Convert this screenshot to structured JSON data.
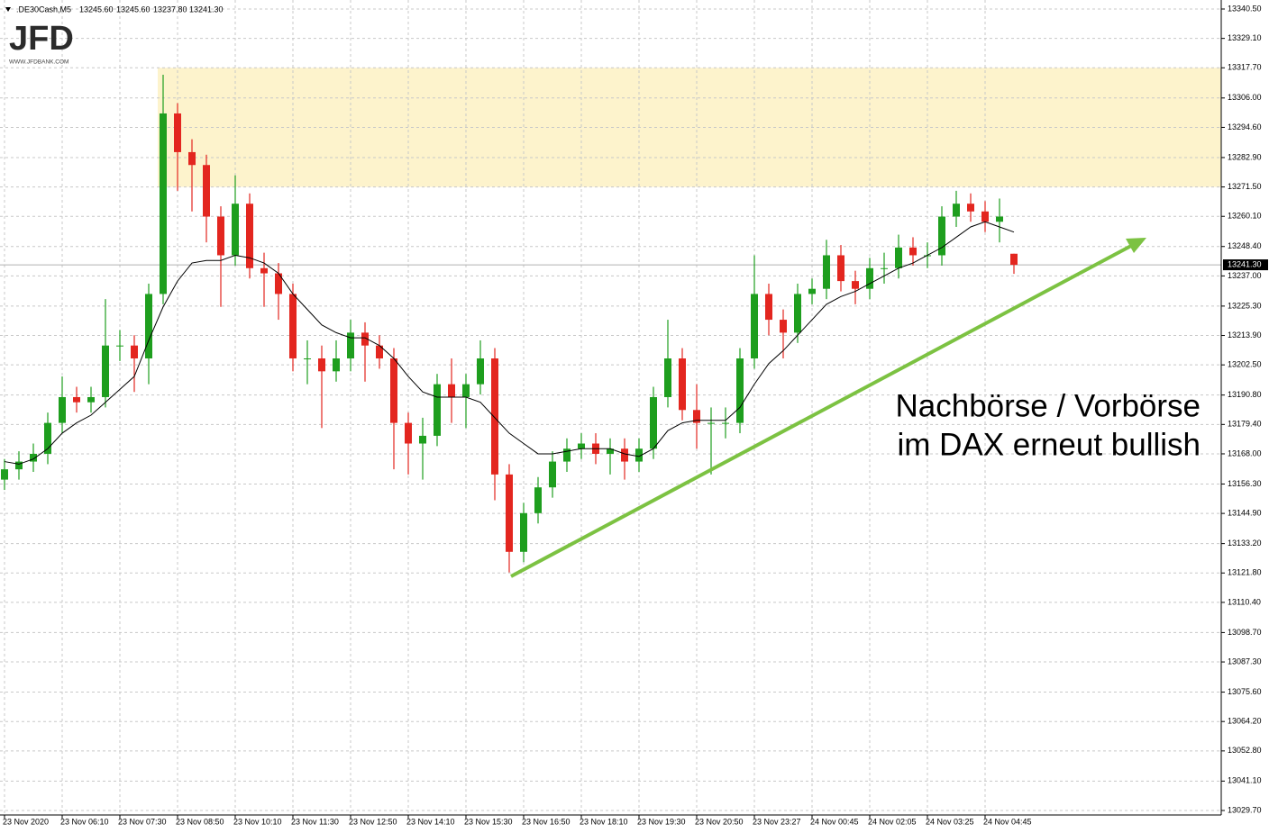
{
  "chart_data": {
    "type": "candlestick",
    "symbol": ".DE30Cash,M5",
    "header_values": [
      "13245.60",
      "13245.60",
      "13237.80",
      "13241.30"
    ],
    "logo": "JFD",
    "logo_url": "WWW.JFDBANK.COM",
    "annotation": [
      "Nachbörse / Vorbörse",
      "im DAX erneut bullish"
    ],
    "ylim": [
      13029.7,
      13340.5
    ],
    "yticks": [
      {
        "value": 13340.5,
        "label": "13340.50"
      },
      {
        "value": 13329.1,
        "label": "13329.10"
      },
      {
        "value": 13317.7,
        "label": "13317.70"
      },
      {
        "value": 13306,
        "label": "13306.00"
      },
      {
        "value": 13294.6,
        "label": "13294.60"
      },
      {
        "value": 13282.9,
        "label": "13282.90"
      },
      {
        "value": 13271.5,
        "label": "13271.50"
      },
      {
        "value": 13260.1,
        "label": "13260.10"
      },
      {
        "value": 13248.4,
        "label": "13248.40"
      },
      {
        "value": 13237,
        "label": "13237.00"
      },
      {
        "value": 13225.3,
        "label": "13225.30"
      },
      {
        "value": 13213.9,
        "label": "13213.90"
      },
      {
        "value": 13202.5,
        "label": "13202.50"
      },
      {
        "value": 13190.8,
        "label": "13190.80"
      },
      {
        "value": 13179.4,
        "label": "13179.40"
      },
      {
        "value": 13168,
        "label": "13168.00"
      },
      {
        "value": 13156.3,
        "label": "13156.30"
      },
      {
        "value": 13144.9,
        "label": "13144.90"
      },
      {
        "value": 13133.2,
        "label": "13133.20"
      },
      {
        "value": 13121.8,
        "label": "13121.80"
      },
      {
        "value": 13110.4,
        "label": "13110.40"
      },
      {
        "value": 13098.7,
        "label": "13098.70"
      },
      {
        "value": 13087.3,
        "label": "13087.30"
      },
      {
        "value": 13075.6,
        "label": "13075.60"
      },
      {
        "value": 13064.2,
        "label": "13064.20"
      },
      {
        "value": 13052.8,
        "label": "13052.80"
      },
      {
        "value": 13041.1,
        "label": "13041.10"
      },
      {
        "value": 13029.7,
        "label": "13029.70"
      }
    ],
    "x_labels": [
      "23 Nov 2020",
      "23 Nov 06:10",
      "23 Nov 07:30",
      "23 Nov 08:50",
      "23 Nov 10:10",
      "23 Nov 11:30",
      "23 Nov 12:50",
      "23 Nov 14:10",
      "23 Nov 15:30",
      "23 Nov 16:50",
      "23 Nov 18:10",
      "23 Nov 19:30",
      "23 Nov 20:50",
      "23 Nov 23:27",
      "24 Nov 00:45",
      "24 Nov 02:05",
      "24 Nov 03:25",
      "24 Nov 04:45"
    ],
    "grid": true,
    "up_color": "#1e9e1e",
    "down_color": "#e3261f",
    "open": [
      13158,
      13162,
      13165,
      13168,
      13180,
      13190,
      13188,
      13190,
      13210,
      13210,
      13205,
      13230,
      13300,
      13285,
      13280,
      13260,
      13245,
      13265,
      13240,
      13238,
      13230,
      13205,
      13205,
      13200,
      13205,
      13215,
      13210,
      13205,
      13180,
      13172,
      13175,
      13195,
      13190,
      13195,
      13205,
      13160,
      13130,
      13145,
      13155,
      13165,
      13170,
      13172,
      13168,
      13170,
      13165,
      13170,
      13190,
      13205,
      13185,
      13180,
      13180,
      13180,
      13205,
      13230,
      13220,
      13215,
      13230,
      13232,
      13245,
      13235,
      13232,
      13240,
      13240,
      13248,
      13245,
      13245,
      13260,
      13265,
      13262,
      13258,
      13245.6
    ],
    "high": [
      13166,
      13169,
      13172,
      13184,
      13198,
      13194,
      13194,
      13228,
      13216,
      13214,
      13234,
      13315,
      13304,
      13290,
      13284,
      13264,
      13276,
      13269,
      13246,
      13242,
      13234,
      13212,
      13210,
      13212,
      13220,
      13219,
      13214,
      13209,
      13184,
      13182,
      13199,
      13205,
      13199,
      13212,
      13209,
      13164,
      13149,
      13159,
      13169,
      13174,
      13176,
      13176,
      13174,
      13174,
      13174,
      13194,
      13220,
      13209,
      13195,
      13186,
      13186,
      13209,
      13245,
      13234,
      13224,
      13234,
      13236,
      13251,
      13249,
      13239,
      13244,
      13246,
      13253,
      13252,
      13250,
      13264,
      13270,
      13269,
      13266,
      13267,
      13245.6
    ],
    "low": [
      13154,
      13158,
      13161,
      13164,
      13176,
      13184,
      13184,
      13186,
      13204,
      13192,
      13195,
      13226,
      13270,
      13262,
      13250,
      13225,
      13241,
      13236,
      13225,
      13220,
      13200,
      13195,
      13178,
      13196,
      13200,
      13196,
      13201,
      13162,
      13160,
      13158,
      13171,
      13180,
      13178,
      13191,
      13150,
      13122,
      13126,
      13141,
      13151,
      13161,
      13166,
      13164,
      13160,
      13158,
      13161,
      13166,
      13186,
      13181,
      13170,
      13160,
      13174,
      13176,
      13201,
      13214,
      13205,
      13211,
      13226,
      13228,
      13231,
      13226,
      13228,
      13234,
      13236,
      13241,
      13240,
      13241,
      13256,
      13258,
      13254,
      13250,
      13237.8
    ],
    "close": [
      13162,
      13165,
      13168,
      13180,
      13190,
      13188,
      13190,
      13210,
      13210,
      13205,
      13230,
      13300,
      13285,
      13280,
      13260,
      13245,
      13265,
      13240,
      13238,
      13230,
      13205,
      13205,
      13200,
      13205,
      13215,
      13210,
      13205,
      13180,
      13172,
      13175,
      13195,
      13190,
      13195,
      13205,
      13160,
      13130,
      13145,
      13155,
      13165,
      13170,
      13172,
      13168,
      13170,
      13165,
      13170,
      13190,
      13205,
      13185,
      13180,
      13180,
      13180,
      13205,
      13230,
      13220,
      13215,
      13230,
      13232,
      13245,
      13235,
      13232,
      13240,
      13240,
      13248,
      13245,
      13245,
      13260,
      13265,
      13262,
      13258,
      13260,
      13241.3
    ],
    "ma": {
      "color": "#000000",
      "values": [
        13165,
        13164,
        13166,
        13170,
        13176,
        13180,
        13183,
        13188,
        13193,
        13198,
        13212,
        13225,
        13235,
        13242,
        13243,
        13243,
        13245,
        13244,
        13242,
        13238,
        13230,
        13224,
        13218,
        13215,
        13213,
        13213,
        13210,
        13205,
        13198,
        13192,
        13190,
        13190,
        13190,
        13188,
        13182,
        13176,
        13172,
        13168,
        13168,
        13169,
        13170,
        13170,
        13170,
        13168,
        13167,
        13170,
        13177,
        13180,
        13181,
        13181,
        13181,
        13186,
        13195,
        13203,
        13208,
        13214,
        13220,
        13226,
        13229,
        13231,
        13234,
        13237,
        13240,
        13242,
        13245,
        13248,
        13252,
        13256,
        13258,
        13256,
        13254
      ]
    },
    "zone": {
      "low": 13271.5,
      "high": 13317.7,
      "color": "#fdf3cc"
    },
    "current_price": {
      "value": 13241.3,
      "label": "13241.30"
    }
  }
}
